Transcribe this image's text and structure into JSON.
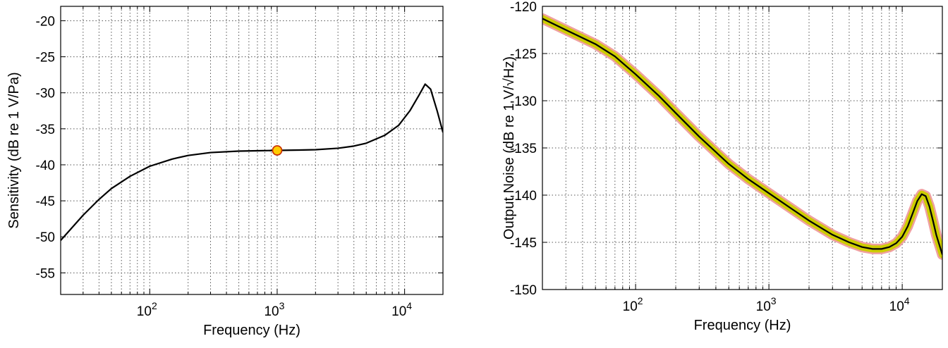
{
  "chart_data": [
    {
      "type": "line",
      "xscale": "log",
      "xlim": [
        20,
        20000
      ],
      "ylim": [
        -58,
        -18
      ],
      "xlabel": "Frequency (Hz)",
      "ylabel": "Sensitivity (dB re 1 V/Pa)",
      "grid": true,
      "x_ticks": [
        100,
        1000,
        10000
      ],
      "x_tick_labels": [
        {
          "base": "10",
          "exp": "2"
        },
        {
          "base": "10",
          "exp": "3"
        },
        {
          "base": "10",
          "exp": "4"
        }
      ],
      "y_ticks": [
        -20,
        -25,
        -30,
        -35,
        -40,
        -45,
        -50,
        -55
      ],
      "series": [
        {
          "color": "#000000",
          "x": [
            20,
            30,
            40,
            50,
            70,
            100,
            150,
            200,
            300,
            500,
            700,
            1000,
            1500,
            2000,
            3000,
            4000,
            5000,
            7000,
            9000,
            11000,
            13000,
            14500,
            16000,
            18000,
            20000
          ],
          "y": [
            -50.5,
            -47.0,
            -44.8,
            -43.3,
            -41.6,
            -40.2,
            -39.2,
            -38.7,
            -38.3,
            -38.1,
            -38.05,
            -38.0,
            -37.95,
            -37.9,
            -37.7,
            -37.4,
            -37.0,
            -35.9,
            -34.5,
            -32.5,
            -30.3,
            -28.8,
            -29.5,
            -32.5,
            -35.5
          ]
        }
      ],
      "markers": [
        {
          "x": 1000,
          "y": -38,
          "fill": "#ffcc00",
          "edge": "#cc3300"
        }
      ]
    },
    {
      "type": "line",
      "xscale": "log",
      "xlim": [
        20,
        20000
      ],
      "ylim": [
        -150,
        -120
      ],
      "xlabel": "Frequency (Hz)",
      "ylabel": "Output Noise (dB re 1 V/√Hz)",
      "grid": true,
      "x_ticks": [
        100,
        1000,
        10000
      ],
      "x_tick_labels": [
        {
          "base": "10",
          "exp": "2"
        },
        {
          "base": "10",
          "exp": "3"
        },
        {
          "base": "10",
          "exp": "4"
        }
      ],
      "y_ticks": [
        -120,
        -125,
        -130,
        -135,
        -140,
        -145,
        -150
      ],
      "series": [
        {
          "color": "#000000",
          "band_inner": "#cccc00",
          "band_outer": "#f0a0a0",
          "x": [
            20,
            30,
            50,
            70,
            100,
            150,
            200,
            300,
            500,
            700,
            1000,
            1500,
            2000,
            3000,
            4000,
            5000,
            6000,
            7000,
            8000,
            9000,
            10000,
            11000,
            12000,
            13000,
            14000,
            15000,
            16000,
            17000,
            18000,
            20000
          ],
          "y": [
            -121.3,
            -122.5,
            -124.0,
            -125.3,
            -127.2,
            -129.5,
            -131.3,
            -133.8,
            -136.7,
            -138.3,
            -139.8,
            -141.5,
            -142.7,
            -144.2,
            -145.0,
            -145.5,
            -145.7,
            -145.7,
            -145.5,
            -145.1,
            -144.4,
            -143.3,
            -141.9,
            -140.6,
            -139.9,
            -140.1,
            -141.2,
            -142.7,
            -144.2,
            -146.3
          ]
        }
      ]
    }
  ]
}
